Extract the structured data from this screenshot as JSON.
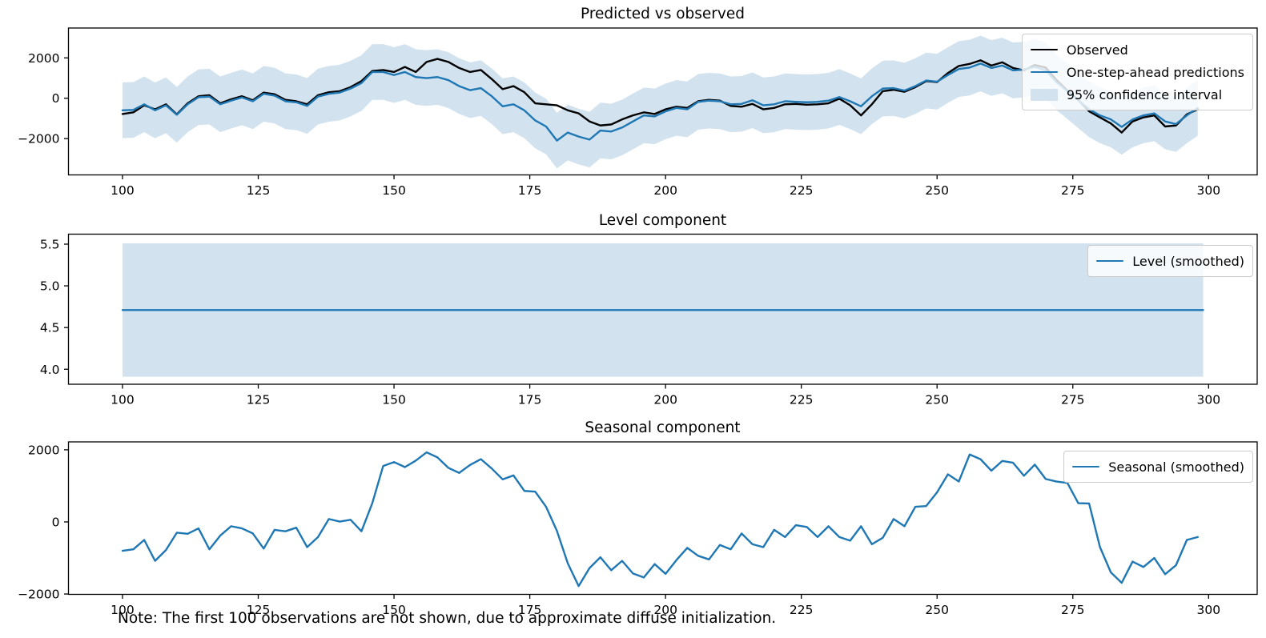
{
  "figure": {
    "note": "Note: The first 100 observations are not shown, due to approximate diffuse initialization.",
    "background": "#ffffff"
  },
  "colors": {
    "observed": "#000000",
    "prediction": "#1f77b4",
    "ci_band": "#d2e3ef",
    "frame": "#000000",
    "legend_border": "#cccccc"
  },
  "chart_data": [
    {
      "type": "line",
      "title": "Predicted vs observed",
      "xlabel": "",
      "ylabel": "",
      "xlim": [
        90.05,
        308.95
      ],
      "ylim": [
        -3800,
        3480
      ],
      "xticks": [
        100,
        125,
        150,
        175,
        200,
        225,
        250,
        275,
        300
      ],
      "xticklabels": [
        "100",
        "125",
        "150",
        "175",
        "200",
        "225",
        "250",
        "275",
        "300"
      ],
      "yticks": [
        -2000,
        0,
        2000
      ],
      "yticklabels": [
        "−2000",
        "0",
        "2000"
      ],
      "grid": false,
      "legend_position": "upper right",
      "legend": [
        {
          "label": "Observed",
          "swatch": "line",
          "color": "#000000"
        },
        {
          "label": "One-step-ahead predictions",
          "swatch": "line",
          "color": "#1f77b4"
        },
        {
          "label": "95% confidence interval",
          "swatch": "patch",
          "color": "#d2e3ef"
        }
      ],
      "x_start": 100,
      "x_step": 2,
      "series": [
        {
          "name": "Observed",
          "color": "#000000",
          "values": [
            -780,
            -700,
            -350,
            -550,
            -300,
            -800,
            -250,
            100,
            150,
            -250,
            -50,
            100,
            -100,
            280,
            200,
            -80,
            -150,
            -300,
            150,
            300,
            350,
            550,
            850,
            1350,
            1400,
            1300,
            1550,
            1300,
            1800,
            1950,
            1800,
            1500,
            1300,
            1400,
            950,
            450,
            600,
            300,
            -250,
            -300,
            -350,
            -600,
            -750,
            -1150,
            -1350,
            -1300,
            -1050,
            -850,
            -700,
            -780,
            -550,
            -420,
            -480,
            -150,
            -80,
            -120,
            -380,
            -420,
            -280,
            -550,
            -480,
            -300,
            -280,
            -320,
            -300,
            -250,
            -20,
            -350,
            -850,
            -300,
            350,
            420,
            320,
            550,
            850,
            800,
            1250,
            1600,
            1700,
            1880,
            1620,
            1780,
            1500,
            1380,
            1650,
            1520,
            900,
            380,
            -80,
            -650,
            -950,
            -1250,
            -1700,
            -1150,
            -950,
            -850,
            -1400,
            -1350,
            -800,
            -550
          ]
        },
        {
          "name": "One-step-ahead predictions",
          "color": "#1f77b4",
          "ci_halfwidth": 1380,
          "values": [
            -600,
            -580,
            -300,
            -600,
            -350,
            -820,
            -300,
            50,
            80,
            -300,
            -120,
            40,
            -150,
            220,
            130,
            -150,
            -200,
            -380,
            80,
            220,
            280,
            480,
            750,
            1300,
            1300,
            1150,
            1300,
            1050,
            1000,
            1050,
            900,
            600,
            400,
            500,
            100,
            -400,
            -300,
            -600,
            -1100,
            -1400,
            -2100,
            -1700,
            -1900,
            -2050,
            -1600,
            -1650,
            -1450,
            -1150,
            -850,
            -900,
            -650,
            -480,
            -550,
            -180,
            -120,
            -150,
            -300,
            -280,
            -100,
            -350,
            -300,
            -150,
            -180,
            -200,
            -180,
            -120,
            60,
            -150,
            -400,
            100,
            480,
            500,
            380,
            600,
            880,
            820,
            1150,
            1450,
            1520,
            1720,
            1500,
            1620,
            1380,
            1420,
            1560,
            1380,
            800,
            350,
            -100,
            -550,
            -850,
            -1050,
            -1420,
            -1050,
            -850,
            -750,
            -1150,
            -1280,
            -850,
            -480
          ]
        }
      ]
    },
    {
      "type": "line",
      "title": "Level component",
      "xlabel": "",
      "ylabel": "",
      "xlim": [
        90.05,
        308.95
      ],
      "ylim": [
        3.82,
        5.62
      ],
      "xticks": [
        100,
        125,
        150,
        175,
        200,
        225,
        250,
        275,
        300
      ],
      "xticklabels": [
        "100",
        "125",
        "150",
        "175",
        "200",
        "225",
        "250",
        "275",
        "300"
      ],
      "yticks": [
        4.0,
        4.5,
        5.0,
        5.5
      ],
      "yticklabels": [
        "4.0",
        "4.5",
        "5.0",
        "5.5"
      ],
      "grid": false,
      "legend_position": "upper right",
      "legend": [
        {
          "label": "Level (smoothed)",
          "swatch": "line",
          "color": "#1f77b4"
        }
      ],
      "band": {
        "x": [
          100,
          299
        ],
        "lower": 3.91,
        "upper": 5.51
      },
      "series": [
        {
          "name": "Level (smoothed)",
          "color": "#1f77b4",
          "x": [
            100,
            299
          ],
          "values": [
            4.71,
            4.71
          ]
        }
      ]
    },
    {
      "type": "line",
      "title": "Seasonal component",
      "xlabel": "",
      "ylabel": "",
      "xlim": [
        90.05,
        308.95
      ],
      "ylim": [
        -2010,
        2220
      ],
      "xticks": [
        100,
        125,
        150,
        175,
        200,
        225,
        250,
        275,
        300
      ],
      "xticklabels": [
        "100",
        "125",
        "150",
        "175",
        "200",
        "225",
        "250",
        "275",
        "300"
      ],
      "yticks": [
        -2000,
        0,
        2000
      ],
      "yticklabels": [
        "−2000",
        "0",
        "2000"
      ],
      "grid": false,
      "legend_position": "upper right",
      "legend": [
        {
          "label": "Seasonal (smoothed)",
          "swatch": "line",
          "color": "#1f77b4"
        }
      ],
      "x_start": 100,
      "x_step": 2,
      "series": [
        {
          "name": "Seasonal (smoothed)",
          "color": "#1f77b4",
          "values": [
            -800,
            -760,
            -500,
            -1080,
            -780,
            -300,
            -330,
            -180,
            -760,
            -380,
            -120,
            -180,
            -320,
            -740,
            -220,
            -260,
            -160,
            -700,
            -420,
            80,
            10,
            60,
            -260,
            520,
            1550,
            1660,
            1520,
            1700,
            1930,
            1790,
            1500,
            1360,
            1580,
            1740,
            1480,
            1180,
            1290,
            860,
            840,
            420,
            -250,
            -1150,
            -1780,
            -1280,
            -980,
            -1340,
            -1080,
            -1430,
            -1540,
            -1170,
            -1440,
            -1060,
            -720,
            -940,
            -1040,
            -640,
            -760,
            -320,
            -620,
            -700,
            -220,
            -420,
            -90,
            -140,
            -420,
            -120,
            -420,
            -520,
            -120,
            -620,
            -440,
            80,
            -120,
            420,
            440,
            820,
            1320,
            1120,
            1870,
            1740,
            1420,
            1690,
            1640,
            1280,
            1590,
            1190,
            1120,
            1080,
            520,
            510,
            -700,
            -1400,
            -1690,
            -1100,
            -1250,
            -1000,
            -1450,
            -1200,
            -500,
            -420
          ]
        }
      ]
    }
  ]
}
